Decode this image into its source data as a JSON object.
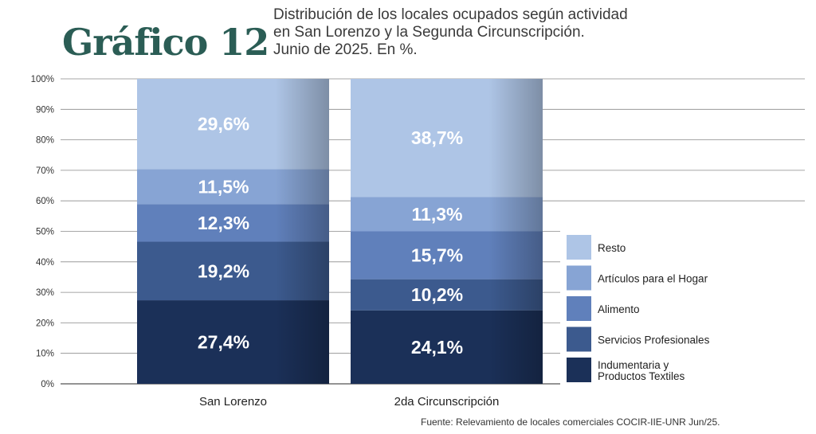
{
  "heading": "Gráfico 12",
  "subtitle_lines": [
    "Distribución de los locales ocupados según actividad",
    "en San Lorenzo y la Segunda Circunscripción.",
    "Junio de 2025. En %."
  ],
  "source": "Fuente: Relevamiento de locales comerciales COCIR-IIE-UNR Jun/25.",
  "colors": {
    "Indumentaria y Productos Textiles": "#1b3058",
    "Servicios Profesionales": "#3c5a8e",
    "Alimento": "#6080bb",
    "Artículos para el Hogar": "#87a4d4",
    "Resto": "#aec5e6"
  },
  "chart_data": {
    "type": "bar",
    "stacked": true,
    "categories": [
      "San Lorenzo",
      "2da Circunscripción"
    ],
    "series": [
      {
        "name": "Indumentaria y Productos Textiles",
        "values": [
          27.4,
          24.1
        ],
        "labels": [
          "27,4%",
          "24,1%"
        ]
      },
      {
        "name": "Servicios Profesionales",
        "values": [
          19.2,
          10.2
        ],
        "labels": [
          "19,2%",
          "10,2%"
        ]
      },
      {
        "name": "Alimento",
        "values": [
          12.3,
          15.7
        ],
        "labels": [
          "12,3%",
          "15,7%"
        ]
      },
      {
        "name": "Artículos para el Hogar",
        "values": [
          11.5,
          11.3
        ],
        "labels": [
          "11,5%",
          "11,3%"
        ]
      },
      {
        "name": "Resto",
        "values": [
          29.6,
          38.7
        ],
        "labels": [
          "29,6%",
          "38,7%"
        ]
      }
    ],
    "legend_order": [
      "Resto",
      "Artículos para el Hogar",
      "Alimento",
      "Servicios Profesionales",
      "Indumentaria y Productos Textiles"
    ],
    "legend_labels": [
      [
        "Resto"
      ],
      [
        "Artículos para el Hogar"
      ],
      [
        "Alimento"
      ],
      [
        "Servicios Profesionales"
      ],
      [
        "Indumentaria y",
        "Productos Textiles"
      ]
    ],
    "yticks": [
      "0%",
      "10%",
      "20%",
      "30%",
      "40%",
      "50%",
      "60%",
      "70%",
      "80%",
      "90%",
      "100%"
    ],
    "ylim": [
      0,
      100
    ],
    "grid": true,
    "legend_position": "right"
  }
}
